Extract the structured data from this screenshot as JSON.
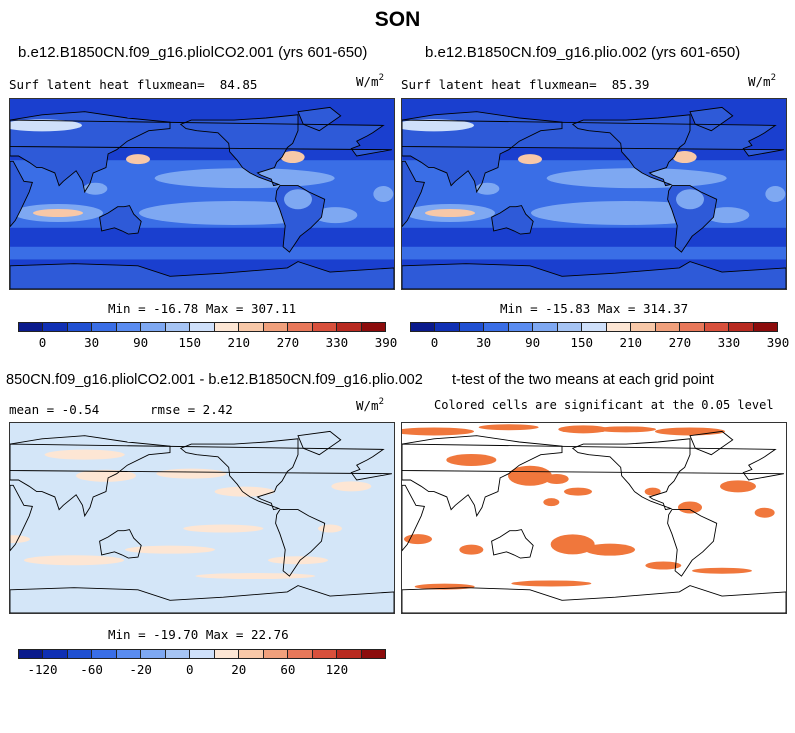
{
  "title": "SON",
  "panels": [
    {
      "title": "b.e12.B1850CN.f09_g16.pliolCO2.001 (yrs 601-650)",
      "variable": "Surf latent heat flux",
      "mean_label": "mean=",
      "mean_value": "84.85",
      "units_base": "W/m",
      "units_exp": "2",
      "minmax": "Min = -16.78 Max = 307.11"
    },
    {
      "title": "b.e12.B1850CN.f09_g16.plio.002 (yrs 601-650)",
      "variable": "Surf latent heat flux",
      "mean_label": "mean=",
      "mean_value": "85.39",
      "units_base": "W/m",
      "units_exp": "2",
      "minmax": "Min = -15.83 Max = 314.37"
    },
    {
      "title": "850CN.f09_g16.pliolCO2.001 - b.e12.B1850CN.f09_g16.plio.002",
      "mean_text": "mean =   -0.54",
      "rmse_text": "rmse =    2.42",
      "units_base": "W/m",
      "units_exp": "2",
      "minmax": "Min = -19.70 Max = 22.76"
    },
    {
      "title": "t-test of the two means at each grid point",
      "subtitle": "Colored cells are significant at the 0.05 level"
    }
  ],
  "colorbars": {
    "abs": {
      "colors": [
        "#0a1a8c",
        "#1030b4",
        "#2050d2",
        "#3a6ee6",
        "#5a8cf0",
        "#7ea8f2",
        "#a6c4f4",
        "#cfe0fa",
        "#fde6d4",
        "#f8c8a8",
        "#f0a07c",
        "#e8785a",
        "#d8503c",
        "#b82a20",
        "#8c0c0c"
      ],
      "ticks": [
        "0",
        "30",
        "90",
        "150",
        "210",
        "270",
        "330",
        "390"
      ]
    },
    "diff": {
      "colors": [
        "#0a1a8c",
        "#1030b4",
        "#2050d2",
        "#3a6ee6",
        "#5a8cf0",
        "#7ea8f2",
        "#a6c4f4",
        "#cfe0fa",
        "#fde6d4",
        "#f8c8a8",
        "#f0a07c",
        "#e8785a",
        "#d8503c",
        "#b82a20",
        "#8c0c0c"
      ],
      "ticks": [
        "-120",
        "-60",
        "-20",
        "0",
        "20",
        "60",
        "120"
      ]
    }
  },
  "map_colors": {
    "abs_ocean": "#1a3fcf",
    "abs_mid": "#3a6ee6",
    "abs_light": "#7ea8f2",
    "abs_pale": "#cfe0fa",
    "abs_warm": "#f8c8a8",
    "abs_land": "#2e5ad8",
    "diff_bg": "#d4e6f8",
    "diff_pos": "#fde6d4",
    "ttest_bg": "#ffffff",
    "ttest_sig": "#f0773c"
  }
}
